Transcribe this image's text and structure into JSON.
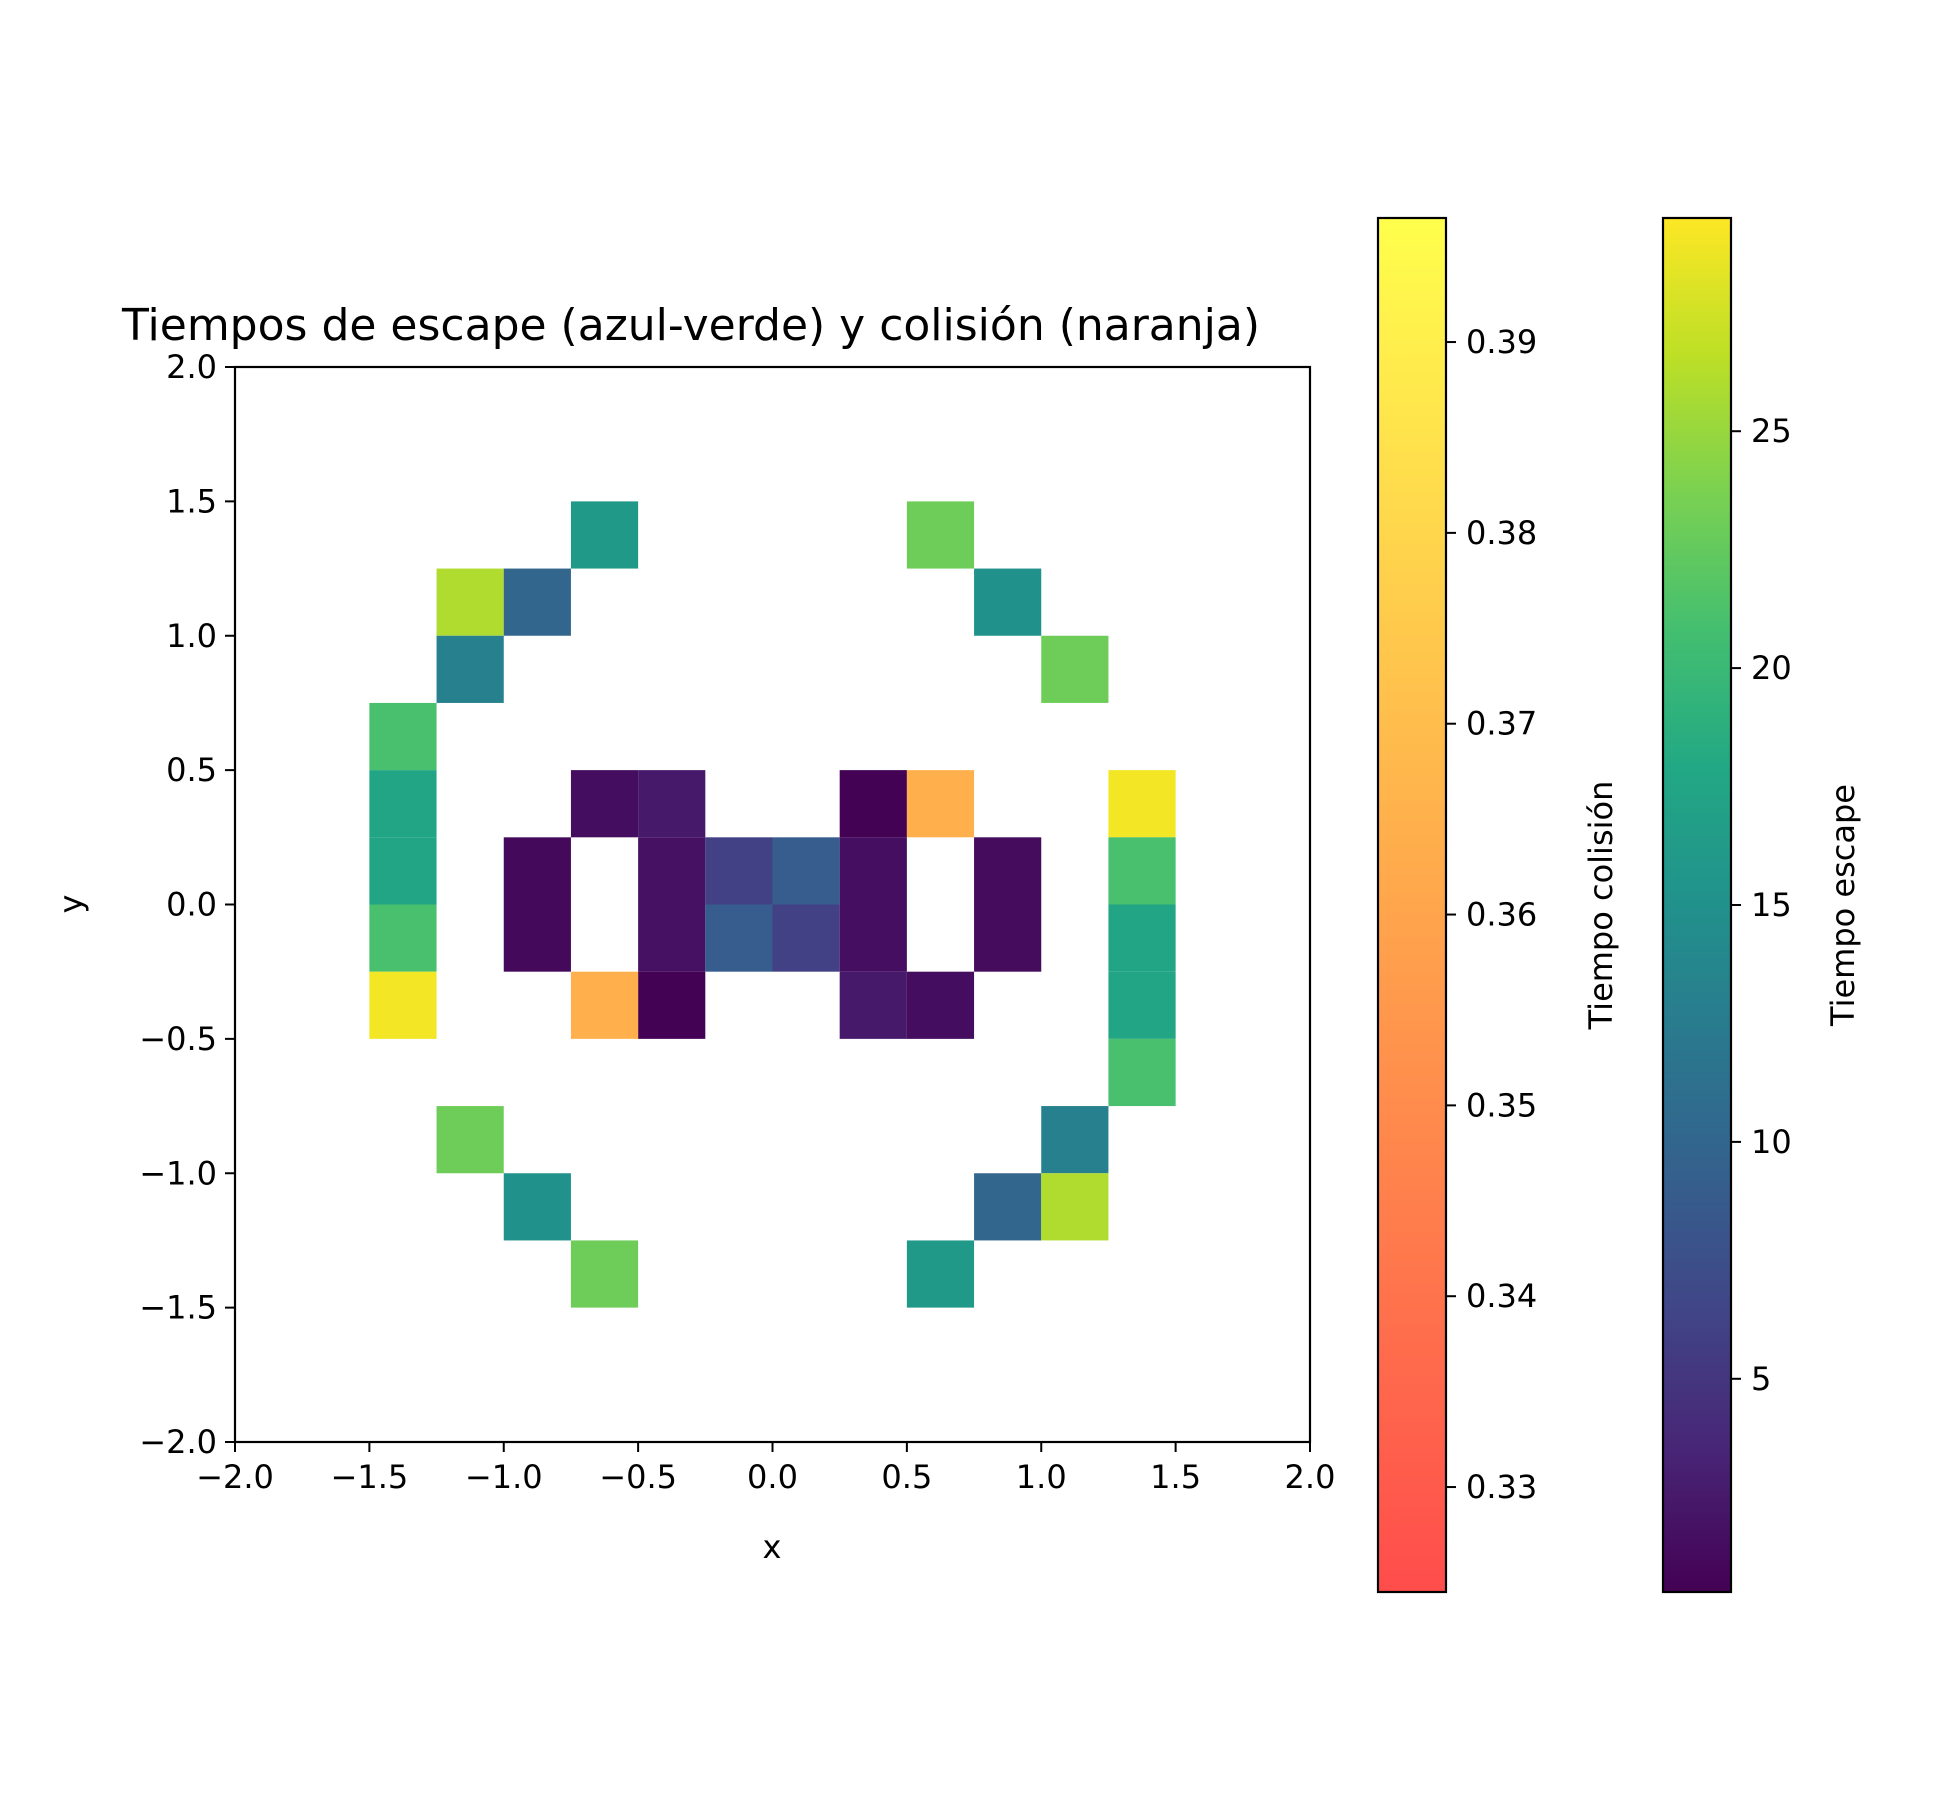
{
  "chart_data": {
    "type": "heatmap",
    "title": "Tiempos de escape (azul-verde) y colisión (naranja)",
    "xlabel": "x",
    "ylabel": "y",
    "xlim": [
      -2.0,
      2.0
    ],
    "ylim": [
      -2.0,
      2.0
    ],
    "cell_size": 0.25,
    "xticks": [
      "−2.0",
      "−1.5",
      "−1.0",
      "−0.5",
      "0.0",
      "0.5",
      "1.0",
      "1.5",
      "2.0"
    ],
    "yticks": [
      "−2.0",
      "−1.5",
      "−1.0",
      "−0.5",
      "0.0",
      "0.5",
      "1.0",
      "1.5",
      "2.0"
    ],
    "grid": false,
    "escape": {
      "label": "Tiempo escape",
      "colormap": "viridis",
      "range": [
        0.5,
        29.5
      ],
      "ticks": [
        5,
        10,
        15,
        20,
        25
      ],
      "cells": [
        {
          "x": -0.625,
          "y": 1.375,
          "v": 16
        },
        {
          "x": 0.625,
          "y": 1.375,
          "v": 23
        },
        {
          "x": -1.125,
          "y": 1.125,
          "v": 26
        },
        {
          "x": -0.875,
          "y": 1.125,
          "v": 10
        },
        {
          "x": 0.875,
          "y": 1.125,
          "v": 15
        },
        {
          "x": -1.125,
          "y": 0.875,
          "v": 13
        },
        {
          "x": 1.125,
          "y": 0.875,
          "v": 23
        },
        {
          "x": -1.375,
          "y": 0.625,
          "v": 21
        },
        {
          "x": -1.375,
          "y": 0.375,
          "v": 17.5
        },
        {
          "x": -0.625,
          "y": 0.375,
          "v": 1.5
        },
        {
          "x": -0.375,
          "y": 0.375,
          "v": 2.5
        },
        {
          "x": 0.375,
          "y": 0.375,
          "v": 0.6
        },
        {
          "x": 1.375,
          "y": 0.375,
          "v": 29
        },
        {
          "x": -1.375,
          "y": 0.125,
          "v": 17.5
        },
        {
          "x": -0.875,
          "y": 0.125,
          "v": 1.2
        },
        {
          "x": -0.375,
          "y": 0.125,
          "v": 1.8
        },
        {
          "x": -0.125,
          "y": 0.125,
          "v": 6
        },
        {
          "x": 0.125,
          "y": 0.125,
          "v": 9
        },
        {
          "x": 0.375,
          "y": 0.125,
          "v": 1.6
        },
        {
          "x": 0.875,
          "y": 0.125,
          "v": 1.3
        },
        {
          "x": 1.375,
          "y": 0.125,
          "v": 21
        },
        {
          "x": -1.375,
          "y": -0.125,
          "v": 21
        },
        {
          "x": -0.875,
          "y": -0.125,
          "v": 1.2
        },
        {
          "x": -0.375,
          "y": -0.125,
          "v": 1.8
        },
        {
          "x": -0.125,
          "y": -0.125,
          "v": 9
        },
        {
          "x": 0.125,
          "y": -0.125,
          "v": 6
        },
        {
          "x": 0.375,
          "y": -0.125,
          "v": 1.6
        },
        {
          "x": 0.875,
          "y": -0.125,
          "v": 1.3
        },
        {
          "x": 1.375,
          "y": -0.125,
          "v": 17.5
        },
        {
          "x": -1.375,
          "y": -0.375,
          "v": 29
        },
        {
          "x": -0.375,
          "y": -0.375,
          "v": 0.6
        },
        {
          "x": 0.375,
          "y": -0.375,
          "v": 2.5
        },
        {
          "x": 0.625,
          "y": -0.375,
          "v": 1.5
        },
        {
          "x": 1.375,
          "y": -0.375,
          "v": 17.5
        },
        {
          "x": 1.375,
          "y": -0.625,
          "v": 21
        },
        {
          "x": -1.125,
          "y": -0.875,
          "v": 23
        },
        {
          "x": 1.125,
          "y": -0.875,
          "v": 13
        },
        {
          "x": -0.875,
          "y": -1.125,
          "v": 15
        },
        {
          "x": 0.875,
          "y": -1.125,
          "v": 10
        },
        {
          "x": 1.125,
          "y": -1.125,
          "v": 26
        },
        {
          "x": -0.625,
          "y": -1.375,
          "v": 23
        },
        {
          "x": 0.625,
          "y": -1.375,
          "v": 16
        }
      ]
    },
    "collision": {
      "label": "Tiempo colisión",
      "colormap": "autumn",
      "alpha": 0.7,
      "range": [
        0.3245,
        0.3965
      ],
      "ticks": [
        "0.33",
        "0.34",
        "0.35",
        "0.36",
        "0.37",
        "0.38",
        "0.39"
      ],
      "tick_values": [
        0.33,
        0.34,
        0.35,
        0.36,
        0.37,
        0.38,
        0.39
      ],
      "cells": [
        {
          "x": 0.625,
          "y": 0.375,
          "v": 0.365
        },
        {
          "x": -0.625,
          "y": -0.375,
          "v": 0.365
        }
      ]
    }
  }
}
